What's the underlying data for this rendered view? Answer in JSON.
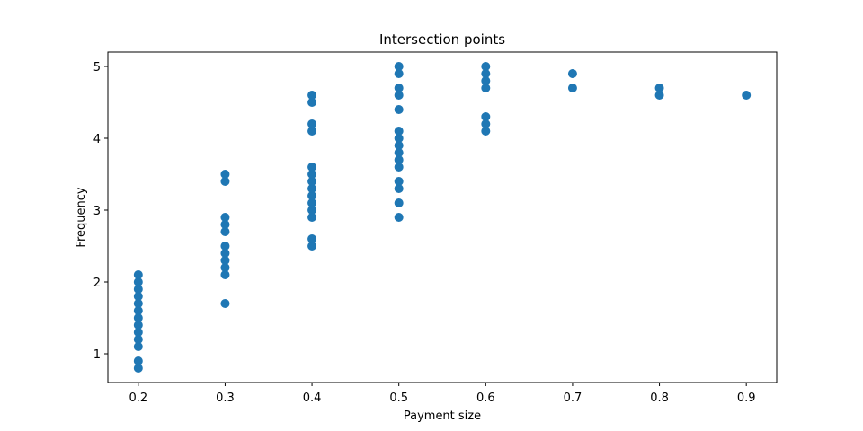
{
  "chart_data": {
    "type": "scatter",
    "title": "Intersection points",
    "xlabel": "Payment size",
    "ylabel": "Frequency",
    "xlim": [
      0.165,
      0.935
    ],
    "ylim": [
      0.6,
      5.2
    ],
    "xticks": [
      0.2,
      0.3,
      0.4,
      0.5,
      0.6,
      0.7,
      0.8,
      0.9
    ],
    "xtick_labels": [
      "0.2",
      "0.3",
      "0.4",
      "0.5",
      "0.6",
      "0.7",
      "0.8",
      "0.9"
    ],
    "yticks": [
      1,
      2,
      3,
      4,
      5
    ],
    "ytick_labels": [
      "1",
      "2",
      "3",
      "4",
      "5"
    ],
    "grid": false,
    "marker_color": "#1f77b4",
    "series": [
      {
        "points": [
          [
            0.2,
            0.8
          ],
          [
            0.2,
            0.9
          ],
          [
            0.2,
            1.1
          ],
          [
            0.2,
            1.2
          ],
          [
            0.2,
            1.3
          ],
          [
            0.2,
            1.4
          ],
          [
            0.2,
            1.5
          ],
          [
            0.2,
            1.6
          ],
          [
            0.2,
            1.7
          ],
          [
            0.2,
            1.8
          ],
          [
            0.2,
            1.9
          ],
          [
            0.2,
            2.0
          ],
          [
            0.2,
            2.1
          ],
          [
            0.3,
            1.7
          ],
          [
            0.3,
            2.1
          ],
          [
            0.3,
            2.2
          ],
          [
            0.3,
            2.3
          ],
          [
            0.3,
            2.4
          ],
          [
            0.3,
            2.5
          ],
          [
            0.3,
            2.7
          ],
          [
            0.3,
            2.8
          ],
          [
            0.3,
            2.9
          ],
          [
            0.3,
            3.4
          ],
          [
            0.3,
            3.5
          ],
          [
            0.4,
            2.5
          ],
          [
            0.4,
            2.6
          ],
          [
            0.4,
            2.9
          ],
          [
            0.4,
            3.0
          ],
          [
            0.4,
            3.1
          ],
          [
            0.4,
            3.2
          ],
          [
            0.4,
            3.3
          ],
          [
            0.4,
            3.4
          ],
          [
            0.4,
            3.5
          ],
          [
            0.4,
            3.6
          ],
          [
            0.4,
            4.1
          ],
          [
            0.4,
            4.2
          ],
          [
            0.4,
            4.5
          ],
          [
            0.4,
            4.6
          ],
          [
            0.5,
            2.9
          ],
          [
            0.5,
            3.1
          ],
          [
            0.5,
            3.3
          ],
          [
            0.5,
            3.4
          ],
          [
            0.5,
            3.6
          ],
          [
            0.5,
            3.7
          ],
          [
            0.5,
            3.8
          ],
          [
            0.5,
            3.9
          ],
          [
            0.5,
            4.0
          ],
          [
            0.5,
            4.1
          ],
          [
            0.5,
            4.4
          ],
          [
            0.5,
            4.6
          ],
          [
            0.5,
            4.7
          ],
          [
            0.5,
            4.9
          ],
          [
            0.5,
            5.0
          ],
          [
            0.6,
            4.1
          ],
          [
            0.6,
            4.2
          ],
          [
            0.6,
            4.3
          ],
          [
            0.6,
            4.7
          ],
          [
            0.6,
            4.8
          ],
          [
            0.6,
            4.9
          ],
          [
            0.6,
            5.0
          ],
          [
            0.7,
            4.7
          ],
          [
            0.7,
            4.9
          ],
          [
            0.8,
            4.6
          ],
          [
            0.8,
            4.7
          ],
          [
            0.9,
            4.6
          ]
        ]
      }
    ]
  }
}
